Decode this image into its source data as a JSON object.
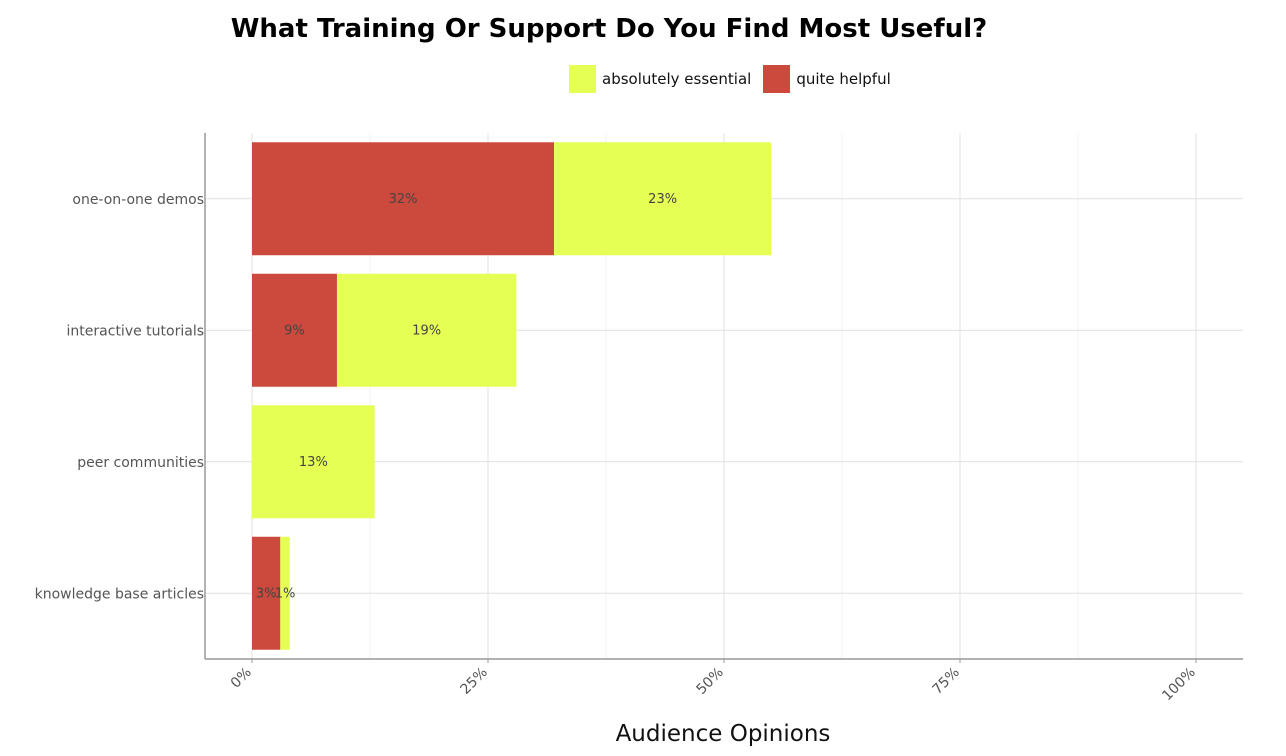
{
  "chart_data": {
    "type": "bar",
    "orientation": "horizontal",
    "stacked": true,
    "title": "What Training Or Support Do You Find Most Useful?",
    "xlabel": "Audience Opinions",
    "ylabel": "",
    "categories": [
      "one-on-one demos",
      "interactive tutorials",
      "peer communities",
      "knowledge base articles"
    ],
    "series": [
      {
        "name": "quite helpful",
        "color": "#cc4a3d",
        "values": [
          32,
          9,
          0,
          3
        ],
        "labels": [
          "32%",
          "9%",
          "",
          "3%"
        ]
      },
      {
        "name": "absolutely essential",
        "color": "#e6ff55",
        "values": [
          23,
          19,
          13,
          1
        ],
        "labels": [
          "23%",
          "19%",
          "13%",
          "1%"
        ]
      }
    ],
    "legend": {
      "position": "top",
      "entries": [
        "absolutely essential",
        "quite helpful"
      ]
    },
    "xlim": [
      0,
      105
    ],
    "xticks": [
      0,
      25,
      50,
      75,
      100
    ],
    "xtick_labels": [
      "0%",
      "25%",
      "50%",
      "75%",
      "100%"
    ],
    "grid": true
  }
}
